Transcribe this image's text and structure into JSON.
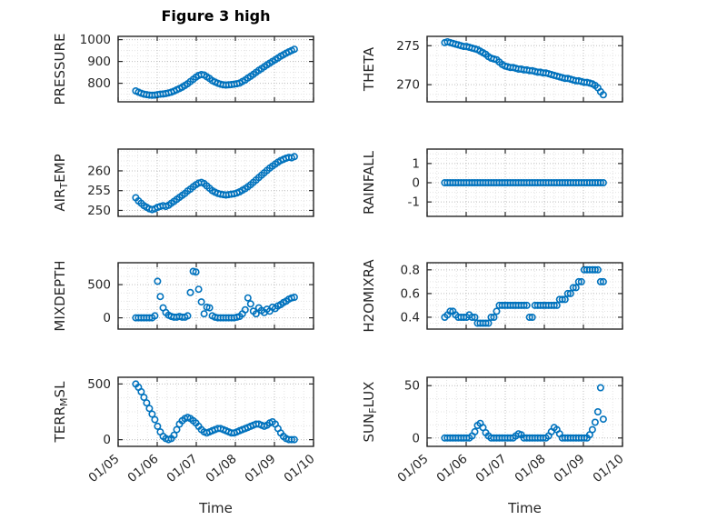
{
  "figure": {
    "title": "Figure 3 high",
    "xlabel": "Time",
    "marker_color": "#0072BD",
    "axis_color": "#262626",
    "grid_color": "#bdbdbd",
    "minor_grid_color": "#e4e4e4",
    "background": "#ffffff"
  },
  "chart_data": [
    {
      "id": "pressure",
      "type": "scatter",
      "ylabel_parts": [
        {
          "t": "PRESSURE"
        }
      ],
      "yticks": [
        800,
        900,
        1000
      ],
      "ytick_labels": [
        "800",
        "900",
        "1000"
      ],
      "ylim": [
        715,
        1015
      ],
      "xlim": [
        5,
        10
      ],
      "xticks": [
        5,
        6,
        7,
        8,
        9,
        10
      ],
      "xtick_labels": [
        "01/05",
        "01/06",
        "01/07",
        "01/08",
        "01/09",
        "01/10"
      ],
      "x": [
        5.45,
        5.52,
        5.59,
        5.66,
        5.73,
        5.8,
        5.87,
        5.94,
        6.01,
        6.08,
        6.15,
        6.22,
        6.29,
        6.36,
        6.43,
        6.5,
        6.57,
        6.64,
        6.71,
        6.78,
        6.85,
        6.92,
        6.99,
        7.06,
        7.13,
        7.2,
        7.27,
        7.34,
        7.41,
        7.48,
        7.55,
        7.62,
        7.69,
        7.76,
        7.83,
        7.9,
        7.97,
        8.04,
        8.11,
        8.18,
        8.25,
        8.32,
        8.39,
        8.46,
        8.53,
        8.6,
        8.67,
        8.74,
        8.81,
        8.88,
        8.95,
        9.02,
        9.09,
        9.16,
        9.23,
        9.3,
        9.37,
        9.44,
        9.51
      ],
      "y": [
        765,
        759,
        754,
        750,
        748,
        746,
        745,
        746,
        748,
        750,
        751,
        753,
        756,
        759,
        764,
        770,
        776,
        782,
        790,
        798,
        808,
        818,
        828,
        836,
        840,
        838,
        830,
        822,
        812,
        806,
        800,
        796,
        793,
        792,
        793,
        794,
        796,
        798,
        801,
        808,
        815,
        824,
        832,
        841,
        850,
        859,
        867,
        876,
        884,
        892,
        900,
        908,
        916,
        924,
        931,
        938,
        944,
        950,
        956
      ]
    },
    {
      "id": "theta",
      "type": "scatter",
      "ylabel_parts": [
        {
          "t": "THETA"
        }
      ],
      "yticks": [
        270,
        275
      ],
      "ytick_labels": [
        "270",
        "275"
      ],
      "ylim": [
        267.8,
        276.2
      ],
      "xlim": [
        5,
        10
      ],
      "xticks": [
        5,
        6,
        7,
        8,
        9,
        10
      ],
      "xtick_labels": [
        "01/05",
        "01/06",
        "01/07",
        "01/08",
        "01/09",
        "01/10"
      ],
      "x": [
        5.45,
        5.52,
        5.59,
        5.66,
        5.73,
        5.8,
        5.87,
        5.94,
        6.01,
        6.08,
        6.15,
        6.22,
        6.29,
        6.36,
        6.43,
        6.5,
        6.57,
        6.64,
        6.71,
        6.78,
        6.85,
        6.92,
        6.99,
        7.06,
        7.13,
        7.2,
        7.27,
        7.34,
        7.41,
        7.48,
        7.55,
        7.62,
        7.69,
        7.76,
        7.83,
        7.9,
        7.97,
        8.04,
        8.11,
        8.18,
        8.25,
        8.32,
        8.39,
        8.46,
        8.53,
        8.6,
        8.67,
        8.74,
        8.81,
        8.88,
        8.95,
        9.02,
        9.09,
        9.16,
        9.23,
        9.3,
        9.37,
        9.44,
        9.51
      ],
      "y": [
        275.4,
        275.5,
        275.4,
        275.3,
        275.2,
        275.1,
        275.0,
        274.9,
        274.9,
        274.8,
        274.7,
        274.6,
        274.5,
        274.3,
        274.1,
        273.9,
        273.6,
        273.4,
        273.3,
        273.2,
        272.9,
        272.6,
        272.4,
        272.3,
        272.2,
        272.2,
        272.1,
        272.0,
        272.0,
        271.9,
        271.9,
        271.8,
        271.8,
        271.7,
        271.6,
        271.6,
        271.5,
        271.5,
        271.4,
        271.3,
        271.2,
        271.1,
        271.0,
        270.9,
        270.8,
        270.8,
        270.7,
        270.6,
        270.5,
        270.5,
        270.4,
        270.3,
        270.3,
        270.2,
        270.1,
        269.9,
        269.6,
        269.1,
        268.7
      ]
    },
    {
      "id": "air-temp",
      "type": "scatter",
      "ylabel_parts": [
        {
          "t": "AIR"
        },
        {
          "t": "T",
          "sub": true
        },
        {
          "t": "EMP"
        }
      ],
      "yticks": [
        250,
        255,
        260
      ],
      "ytick_labels": [
        "250",
        "255",
        "260"
      ],
      "ylim": [
        248.5,
        265.5
      ],
      "xlim": [
        5,
        10
      ],
      "xticks": [
        5,
        6,
        7,
        8,
        9,
        10
      ],
      "xtick_labels": [
        "01/05",
        "01/06",
        "01/07",
        "01/08",
        "01/09",
        "01/10"
      ],
      "x": [
        5.45,
        5.52,
        5.59,
        5.66,
        5.73,
        5.8,
        5.87,
        5.94,
        6.01,
        6.08,
        6.15,
        6.22,
        6.29,
        6.36,
        6.43,
        6.5,
        6.57,
        6.64,
        6.71,
        6.78,
        6.85,
        6.92,
        6.99,
        7.06,
        7.13,
        7.2,
        7.27,
        7.34,
        7.41,
        7.48,
        7.55,
        7.62,
        7.69,
        7.76,
        7.83,
        7.9,
        7.97,
        8.04,
        8.11,
        8.18,
        8.25,
        8.32,
        8.39,
        8.46,
        8.53,
        8.6,
        8.67,
        8.74,
        8.81,
        8.88,
        8.95,
        9.02,
        9.09,
        9.16,
        9.23,
        9.3,
        9.37,
        9.44,
        9.51
      ],
      "y": [
        253.2,
        252.4,
        251.8,
        251.2,
        250.8,
        250.4,
        250.2,
        250.4,
        250.8,
        251.0,
        251.2,
        251.0,
        251.3,
        251.8,
        252.3,
        252.8,
        253.3,
        253.8,
        254.3,
        254.9,
        255.4,
        256.0,
        256.5,
        256.9,
        257.1,
        256.8,
        256.2,
        255.6,
        255.0,
        254.6,
        254.3,
        254.1,
        254.0,
        253.9,
        254.0,
        254.1,
        254.2,
        254.4,
        254.7,
        255.1,
        255.5,
        256.0,
        256.5,
        257.1,
        257.7,
        258.3,
        258.9,
        259.5,
        260.1,
        260.7,
        261.2,
        261.7,
        262.2,
        262.6,
        262.9,
        263.2,
        263.4,
        263.3,
        263.6
      ]
    },
    {
      "id": "rainfall",
      "type": "scatter",
      "ylabel_parts": [
        {
          "t": "RAINFALL"
        }
      ],
      "yticks": [
        -1,
        0,
        1
      ],
      "ytick_labels": [
        "-1",
        "0",
        "1"
      ],
      "ylim": [
        -1.75,
        1.75
      ],
      "xlim": [
        5,
        10
      ],
      "xticks": [
        5,
        6,
        7,
        8,
        9,
        10
      ],
      "xtick_labels": [
        "01/05",
        "01/06",
        "01/07",
        "01/08",
        "01/09",
        "01/10"
      ],
      "x": [
        5.45,
        5.52,
        5.59,
        5.66,
        5.73,
        5.8,
        5.87,
        5.94,
        6.01,
        6.08,
        6.15,
        6.22,
        6.29,
        6.36,
        6.43,
        6.5,
        6.57,
        6.64,
        6.71,
        6.78,
        6.85,
        6.92,
        6.99,
        7.06,
        7.13,
        7.2,
        7.27,
        7.34,
        7.41,
        7.48,
        7.55,
        7.62,
        7.69,
        7.76,
        7.83,
        7.9,
        7.97,
        8.04,
        8.11,
        8.18,
        8.25,
        8.32,
        8.39,
        8.46,
        8.53,
        8.6,
        8.67,
        8.74,
        8.81,
        8.88,
        8.95,
        9.02,
        9.09,
        9.16,
        9.23,
        9.3,
        9.37,
        9.44,
        9.51
      ],
      "y": [
        0,
        0,
        0,
        0,
        0,
        0,
        0,
        0,
        0,
        0,
        0,
        0,
        0,
        0,
        0,
        0,
        0,
        0,
        0,
        0,
        0,
        0,
        0,
        0,
        0,
        0,
        0,
        0,
        0,
        0,
        0,
        0,
        0,
        0,
        0,
        0,
        0,
        0,
        0,
        0,
        0,
        0,
        0,
        0,
        0,
        0,
        0,
        0,
        0,
        0,
        0,
        0,
        0,
        0,
        0,
        0,
        0,
        0,
        0
      ]
    },
    {
      "id": "mixdepth",
      "type": "scatter",
      "ylabel_parts": [
        {
          "t": "MIXDEPTH"
        }
      ],
      "yticks": [
        0,
        500
      ],
      "ytick_labels": [
        "0",
        "500"
      ],
      "ylim": [
        -170,
        830
      ],
      "xlim": [
        5,
        10
      ],
      "xticks": [
        5,
        6,
        7,
        8,
        9,
        10
      ],
      "xtick_labels": [
        "01/05",
        "01/06",
        "01/07",
        "01/08",
        "01/09",
        "01/10"
      ],
      "x": [
        5.45,
        5.52,
        5.59,
        5.66,
        5.73,
        5.8,
        5.87,
        5.94,
        6.01,
        6.08,
        6.15,
        6.22,
        6.29,
        6.36,
        6.43,
        6.5,
        6.57,
        6.64,
        6.71,
        6.78,
        6.85,
        6.92,
        6.99,
        7.06,
        7.13,
        7.2,
        7.27,
        7.34,
        7.41,
        7.48,
        7.55,
        7.62,
        7.69,
        7.76,
        7.83,
        7.9,
        7.97,
        8.04,
        8.11,
        8.18,
        8.25,
        8.32,
        8.39,
        8.46,
        8.53,
        8.6,
        8.67,
        8.74,
        8.81,
        8.88,
        8.95,
        9.02,
        9.09,
        9.16,
        9.23,
        9.3,
        9.37,
        9.44,
        9.51
      ],
      "y": [
        0,
        0,
        0,
        0,
        0,
        0,
        0,
        30,
        550,
        320,
        150,
        80,
        40,
        20,
        10,
        10,
        20,
        10,
        10,
        30,
        380,
        700,
        690,
        430,
        240,
        60,
        160,
        150,
        30,
        10,
        0,
        0,
        0,
        0,
        0,
        0,
        0,
        10,
        20,
        60,
        120,
        300,
        210,
        100,
        60,
        150,
        110,
        80,
        130,
        100,
        160,
        140,
        180,
        200,
        230,
        250,
        280,
        300,
        310
      ]
    },
    {
      "id": "h2omixra",
      "type": "scatter",
      "ylabel_parts": [
        {
          "t": "H2OMIXRA"
        }
      ],
      "yticks": [
        0.4,
        0.6,
        0.8
      ],
      "ytick_labels": [
        "0.4",
        "0.6",
        "0.8"
      ],
      "ylim": [
        0.3,
        0.86
      ],
      "xlim": [
        5,
        10
      ],
      "xticks": [
        5,
        6,
        7,
        8,
        9,
        10
      ],
      "xtick_labels": [
        "01/05",
        "01/06",
        "01/07",
        "01/08",
        "01/09",
        "01/10"
      ],
      "x": [
        5.45,
        5.52,
        5.59,
        5.66,
        5.73,
        5.8,
        5.87,
        5.94,
        6.01,
        6.08,
        6.15,
        6.22,
        6.29,
        6.36,
        6.43,
        6.5,
        6.57,
        6.64,
        6.71,
        6.78,
        6.85,
        6.92,
        6.99,
        7.06,
        7.13,
        7.2,
        7.27,
        7.34,
        7.41,
        7.48,
        7.55,
        7.62,
        7.69,
        7.76,
        7.83,
        7.9,
        7.97,
        8.04,
        8.11,
        8.18,
        8.25,
        8.32,
        8.39,
        8.46,
        8.53,
        8.6,
        8.67,
        8.74,
        8.81,
        8.88,
        8.95,
        9.02,
        9.09,
        9.16,
        9.23,
        9.3,
        9.37,
        9.44,
        9.51
      ],
      "y": [
        0.4,
        0.42,
        0.45,
        0.45,
        0.42,
        0.4,
        0.4,
        0.4,
        0.4,
        0.42,
        0.4,
        0.4,
        0.35,
        0.35,
        0.35,
        0.35,
        0.35,
        0.4,
        0.4,
        0.45,
        0.5,
        0.5,
        0.5,
        0.5,
        0.5,
        0.5,
        0.5,
        0.5,
        0.5,
        0.5,
        0.5,
        0.4,
        0.4,
        0.5,
        0.5,
        0.5,
        0.5,
        0.5,
        0.5,
        0.5,
        0.5,
        0.5,
        0.55,
        0.55,
        0.55,
        0.6,
        0.6,
        0.65,
        0.65,
        0.7,
        0.7,
        0.8,
        0.8,
        0.8,
        0.8,
        0.8,
        0.8,
        0.7,
        0.7
      ]
    },
    {
      "id": "terr-msl",
      "type": "scatter",
      "ylabel_parts": [
        {
          "t": "TERR"
        },
        {
          "t": "M",
          "sub": true
        },
        {
          "t": "SL"
        }
      ],
      "yticks": [
        0,
        500
      ],
      "ytick_labels": [
        "0",
        "500"
      ],
      "ylim": [
        -60,
        560
      ],
      "xlim": [
        5,
        10
      ],
      "xticks": [
        5,
        6,
        7,
        8,
        9,
        10
      ],
      "xtick_labels": [
        "01/05",
        "01/06",
        "01/07",
        "01/08",
        "01/09",
        "01/10"
      ],
      "x": [
        5.45,
        5.52,
        5.59,
        5.66,
        5.73,
        5.8,
        5.87,
        5.94,
        6.01,
        6.08,
        6.15,
        6.22,
        6.29,
        6.36,
        6.43,
        6.5,
        6.57,
        6.64,
        6.71,
        6.78,
        6.85,
        6.92,
        6.99,
        7.06,
        7.13,
        7.2,
        7.27,
        7.34,
        7.41,
        7.48,
        7.55,
        7.62,
        7.69,
        7.76,
        7.83,
        7.9,
        7.97,
        8.04,
        8.11,
        8.18,
        8.25,
        8.32,
        8.39,
        8.46,
        8.53,
        8.6,
        8.67,
        8.74,
        8.81,
        8.88,
        8.95,
        9.02,
        9.09,
        9.16,
        9.23,
        9.3,
        9.37,
        9.44,
        9.51
      ],
      "y": [
        500,
        470,
        430,
        380,
        330,
        280,
        230,
        180,
        120,
        70,
        30,
        10,
        0,
        10,
        40,
        90,
        140,
        170,
        190,
        200,
        190,
        170,
        150,
        120,
        90,
        70,
        60,
        70,
        80,
        90,
        100,
        100,
        90,
        80,
        70,
        60,
        60,
        70,
        80,
        90,
        100,
        110,
        120,
        130,
        140,
        140,
        130,
        120,
        130,
        150,
        160,
        140,
        100,
        60,
        30,
        10,
        0,
        0,
        0
      ]
    },
    {
      "id": "sun-flux",
      "type": "scatter",
      "ylabel_parts": [
        {
          "t": "SUN"
        },
        {
          "t": "F",
          "sub": true
        },
        {
          "t": "LUX"
        }
      ],
      "yticks": [
        0,
        50
      ],
      "ytick_labels": [
        "0",
        "50"
      ],
      "ylim": [
        -8,
        58
      ],
      "xlim": [
        5,
        10
      ],
      "xticks": [
        5,
        6,
        7,
        8,
        9,
        10
      ],
      "xtick_labels": [
        "01/05",
        "01/06",
        "01/07",
        "01/08",
        "01/09",
        "01/10"
      ],
      "x": [
        5.45,
        5.52,
        5.59,
        5.66,
        5.73,
        5.8,
        5.87,
        5.94,
        6.01,
        6.08,
        6.15,
        6.22,
        6.29,
        6.36,
        6.43,
        6.5,
        6.57,
        6.64,
        6.71,
        6.78,
        6.85,
        6.92,
        6.99,
        7.06,
        7.13,
        7.2,
        7.27,
        7.34,
        7.41,
        7.48,
        7.55,
        7.62,
        7.69,
        7.76,
        7.83,
        7.9,
        7.97,
        8.04,
        8.11,
        8.18,
        8.25,
        8.32,
        8.39,
        8.46,
        8.53,
        8.6,
        8.67,
        8.74,
        8.81,
        8.88,
        8.95,
        9.02,
        9.09,
        9.16,
        9.23,
        9.3,
        9.37,
        9.44,
        9.51
      ],
      "y": [
        0,
        0,
        0,
        0,
        0,
        0,
        0,
        0,
        0,
        0,
        2,
        6,
        12,
        14,
        10,
        5,
        2,
        0,
        0,
        0,
        0,
        0,
        0,
        0,
        0,
        0,
        2,
        4,
        3,
        0,
        0,
        0,
        0,
        0,
        0,
        0,
        0,
        0,
        2,
        6,
        10,
        8,
        4,
        0,
        0,
        0,
        0,
        0,
        0,
        0,
        0,
        0,
        0,
        3,
        8,
        15,
        25,
        48,
        18
      ]
    }
  ]
}
